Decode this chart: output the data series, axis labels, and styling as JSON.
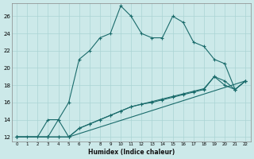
{
  "xlabel": "Humidex (Indice chaleur)",
  "bg_color": "#cce9e9",
  "line_color": "#1a6b6b",
  "grid_color": "#aad4d4",
  "xlim": [
    -0.5,
    22.5
  ],
  "ylim": [
    11.5,
    27.5
  ],
  "xticks": [
    0,
    1,
    2,
    3,
    4,
    5,
    6,
    7,
    8,
    9,
    10,
    11,
    12,
    13,
    14,
    15,
    16,
    17,
    18,
    19,
    20,
    21,
    22
  ],
  "yticks": [
    12,
    14,
    16,
    18,
    20,
    22,
    24,
    26
  ],
  "line1_x": [
    0,
    1,
    2,
    3,
    4,
    5,
    6,
    7,
    8,
    9,
    10,
    11,
    12,
    13,
    14,
    15,
    16,
    17,
    18,
    19,
    20,
    21,
    22
  ],
  "line1_y": [
    12,
    12,
    12,
    14,
    14,
    16,
    21,
    22,
    23.5,
    24,
    27.2,
    26,
    24,
    23.5,
    23.5,
    26,
    25.3,
    23,
    22.5,
    21,
    20.5,
    17.5,
    18.5
  ],
  "line2_x": [
    0,
    3,
    4,
    5,
    22
  ],
  "line2_y": [
    12,
    12,
    14,
    12,
    18.5
  ],
  "line3_x": [
    0,
    3,
    4,
    5,
    6,
    7,
    8,
    9,
    10,
    11,
    12,
    13,
    14,
    15,
    16,
    17,
    18,
    19,
    20,
    21,
    22
  ],
  "line3_y": [
    12,
    12,
    12,
    12,
    13,
    13.5,
    14,
    14.5,
    15,
    15.5,
    15.8,
    16,
    16.3,
    16.6,
    16.9,
    17.2,
    17.5,
    19,
    18.5,
    17.5,
    18.5
  ],
  "line4_x": [
    0,
    3,
    4,
    5,
    6,
    7,
    8,
    9,
    10,
    11,
    12,
    13,
    14,
    15,
    16,
    17,
    18,
    19,
    20,
    21,
    22
  ],
  "line4_y": [
    12,
    12,
    12,
    12,
    13,
    13.5,
    14,
    14.5,
    15,
    15.5,
    15.8,
    16.1,
    16.4,
    16.7,
    17,
    17.3,
    17.6,
    19,
    18,
    17.5,
    18.5
  ]
}
